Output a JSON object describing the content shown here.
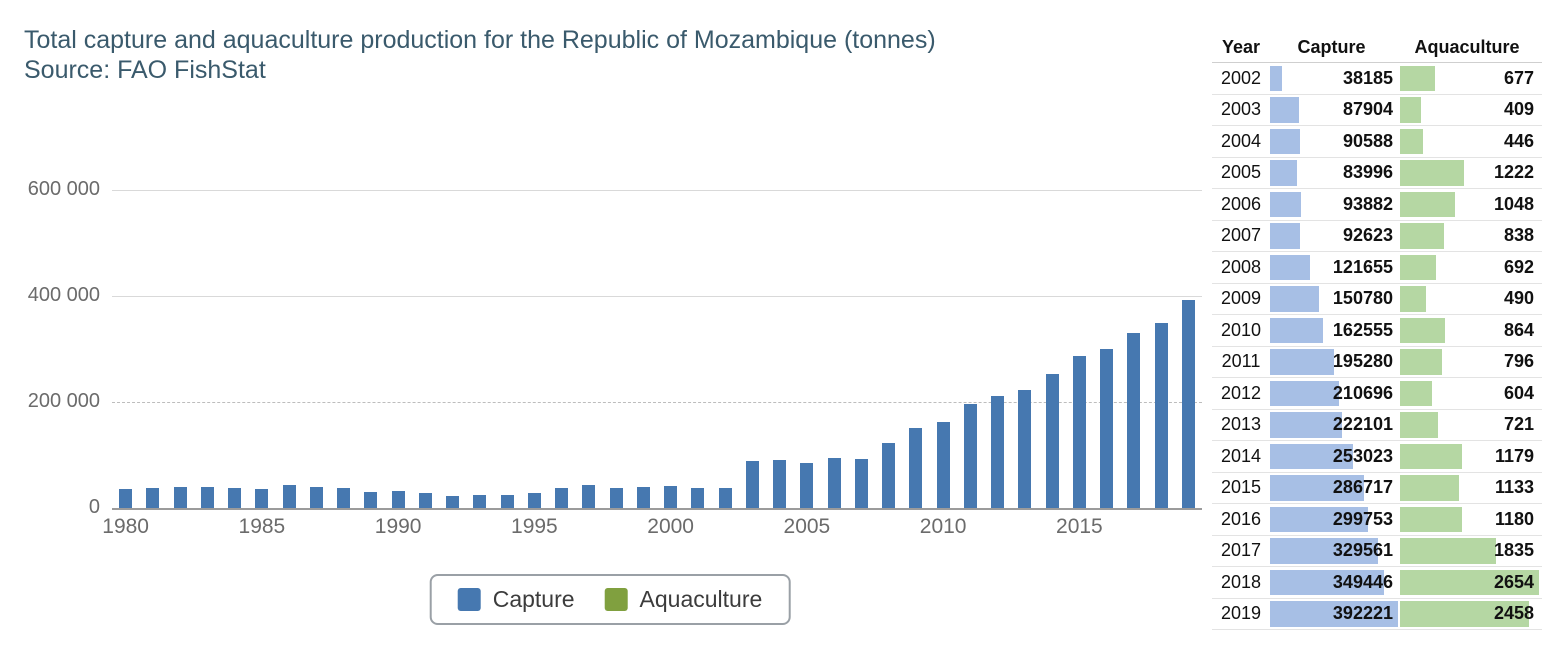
{
  "colors": {
    "title_text": "#3a5a6c",
    "axis_text": "#6b6b6b",
    "capture_bar": "#4678b0",
    "aquaculture_swatch": "#80a03f",
    "table_capture_bar": "#a7bfe5",
    "table_aquaculture_bar": "#b5d7a3"
  },
  "chart_data": {
    "type": "bar",
    "title": "Total capture and aquaculture production for the Republic of Mozambique (tonnes)",
    "subtitle": "Source: FAO FishStat",
    "x": [
      1980,
      1981,
      1982,
      1983,
      1984,
      1985,
      1986,
      1987,
      1988,
      1989,
      1990,
      1991,
      1992,
      1993,
      1994,
      1995,
      1996,
      1997,
      1998,
      1999,
      2000,
      2001,
      2002,
      2003,
      2004,
      2005,
      2006,
      2007,
      2008,
      2009,
      2010,
      2011,
      2012,
      2013,
      2014,
      2015,
      2016,
      2017,
      2018,
      2019
    ],
    "series": [
      {
        "name": "Capture",
        "color": "#4678b0",
        "values": [
          35000,
          38000,
          40000,
          40000,
          37000,
          36000,
          43000,
          40000,
          37000,
          31000,
          33000,
          28000,
          23000,
          24000,
          25000,
          28000,
          38000,
          43000,
          37000,
          40000,
          42000,
          37000,
          38185,
          87904,
          90588,
          83996,
          93882,
          92623,
          121655,
          150780,
          162555,
          195280,
          210696,
          222101,
          253023,
          286717,
          299753,
          329561,
          349446,
          392221
        ]
      },
      {
        "name": "Aquaculture",
        "color": "#80a03f",
        "values": [
          0,
          0,
          0,
          0,
          0,
          0,
          0,
          0,
          0,
          0,
          0,
          0,
          0,
          0,
          0,
          0,
          0,
          0,
          0,
          0,
          0,
          0,
          677,
          409,
          446,
          1222,
          1048,
          838,
          692,
          490,
          864,
          796,
          604,
          721,
          1179,
          1133,
          1180,
          1835,
          2654,
          2458
        ]
      }
    ],
    "ylim": [
      0,
      650000
    ],
    "yticks": [
      0,
      200000,
      400000,
      600000
    ],
    "ytick_labels": [
      "0",
      "200 000",
      "400 000",
      "600 000"
    ],
    "xticks": [
      1980,
      1985,
      1990,
      1995,
      2000,
      2005,
      2010,
      2015
    ],
    "grid": true,
    "legend_position": "bottom"
  },
  "table": {
    "headers": [
      "Year",
      "Capture",
      "Aquaculture"
    ],
    "capture_bar_color": "#a7bfe5",
    "aquaculture_bar_color": "#b5d7a3",
    "rows": [
      {
        "year": "2002",
        "capture": 38185,
        "aquaculture": 677
      },
      {
        "year": "2003",
        "capture": 87904,
        "aquaculture": 409
      },
      {
        "year": "2004",
        "capture": 90588,
        "aquaculture": 446
      },
      {
        "year": "2005",
        "capture": 83996,
        "aquaculture": 1222
      },
      {
        "year": "2006",
        "capture": 93882,
        "aquaculture": 1048
      },
      {
        "year": "2007",
        "capture": 92623,
        "aquaculture": 838
      },
      {
        "year": "2008",
        "capture": 121655,
        "aquaculture": 692
      },
      {
        "year": "2009",
        "capture": 150780,
        "aquaculture": 490
      },
      {
        "year": "2010",
        "capture": 162555,
        "aquaculture": 864
      },
      {
        "year": "2011",
        "capture": 195280,
        "aquaculture": 796
      },
      {
        "year": "2012",
        "capture": 210696,
        "aquaculture": 604
      },
      {
        "year": "2013",
        "capture": 222101,
        "aquaculture": 721
      },
      {
        "year": "2014",
        "capture": 253023,
        "aquaculture": 1179
      },
      {
        "year": "2015",
        "capture": 286717,
        "aquaculture": 1133
      },
      {
        "year": "2016",
        "capture": 299753,
        "aquaculture": 1180
      },
      {
        "year": "2017",
        "capture": 329561,
        "aquaculture": 1835
      },
      {
        "year": "2018",
        "capture": 349446,
        "aquaculture": 2654
      },
      {
        "year": "2019",
        "capture": 392221,
        "aquaculture": 2458
      }
    ]
  }
}
